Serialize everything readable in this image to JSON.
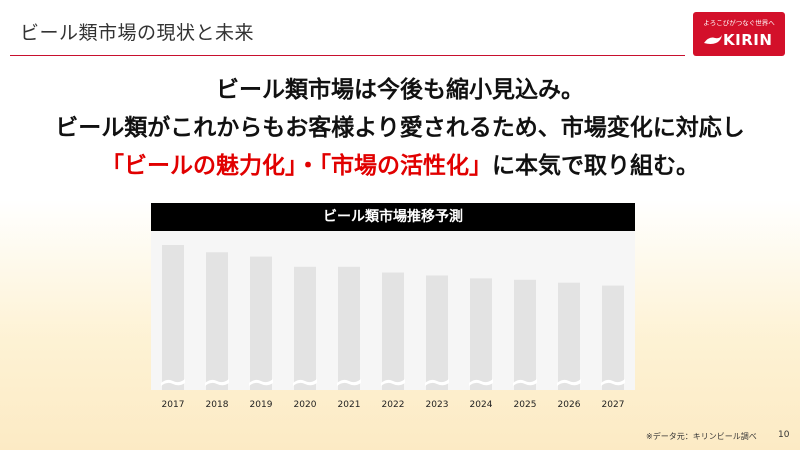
{
  "header": {
    "title": "ビール類市場の現状と未来"
  },
  "logo": {
    "tagline": "よろこびがつなぐ世界へ",
    "word": "KIRIN"
  },
  "headline": {
    "line1": "ビール類市場は今後も縮小見込み。",
    "line2": "ビール類がこれからもお客様より愛されるため、市場変化に対応し",
    "line3_part1": "「ビールの魅力化」・「市場の活性化」",
    "line3_part2": "に本気で取り組む。"
  },
  "chart_data": {
    "type": "bar",
    "title": "ビール類市場推移予測",
    "categories": [
      "2017",
      "2018",
      "2019",
      "2020",
      "2021",
      "2022",
      "2023",
      "2024",
      "2025",
      "2026",
      "2027"
    ],
    "values": [
      100,
      95,
      92,
      85,
      85,
      81,
      79,
      77,
      76,
      74,
      72
    ],
    "ylabel": "",
    "xlabel": "",
    "ylim": [
      0,
      100
    ],
    "y_axis_broken": true,
    "grid": false,
    "bar_color": "#e3e3e3"
  },
  "colors": {
    "accent": "#e10000",
    "brand": "#d3102a",
    "title_bar": "#000000"
  },
  "footer": {
    "source": "※データ元：キリンビール調べ",
    "page": "10"
  }
}
